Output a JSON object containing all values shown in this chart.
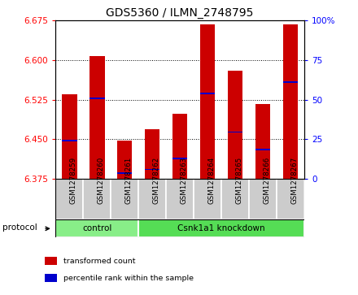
{
  "title": "GDS5360 / ILMN_2748795",
  "samples": [
    "GSM1278259",
    "GSM1278260",
    "GSM1278261",
    "GSM1278262",
    "GSM1278263",
    "GSM1278264",
    "GSM1278265",
    "GSM1278266",
    "GSM1278267"
  ],
  "bar_values": [
    6.535,
    6.607,
    6.447,
    6.468,
    6.498,
    6.668,
    6.58,
    6.516,
    6.668
  ],
  "bar_base": 6.375,
  "percentile_values": [
    6.447,
    6.527,
    6.385,
    6.392,
    6.413,
    6.537,
    6.463,
    6.43,
    6.558
  ],
  "y_min": 6.375,
  "y_max": 6.675,
  "y_ticks": [
    6.375,
    6.45,
    6.525,
    6.6,
    6.675
  ],
  "y2_ticks": [
    0,
    25,
    50,
    75,
    100
  ],
  "bar_color": "#cc0000",
  "percentile_color": "#0000cc",
  "bar_width": 0.55,
  "groups": [
    {
      "label": "control",
      "indices": [
        0,
        1,
        2
      ],
      "color": "#88ee88"
    },
    {
      "label": "Csnk1a1 knockdown",
      "indices": [
        3,
        4,
        5,
        6,
        7,
        8
      ],
      "color": "#55dd55"
    }
  ],
  "legend_items": [
    {
      "label": "transformed count",
      "color": "#cc0000"
    },
    {
      "label": "percentile rank within the sample",
      "color": "#0000cc"
    }
  ],
  "protocol_label": "protocol",
  "bg_color": "#cccccc",
  "plot_bg": "#ffffff",
  "title_fontsize": 10,
  "tick_fontsize": 7.5,
  "label_fontsize": 8
}
